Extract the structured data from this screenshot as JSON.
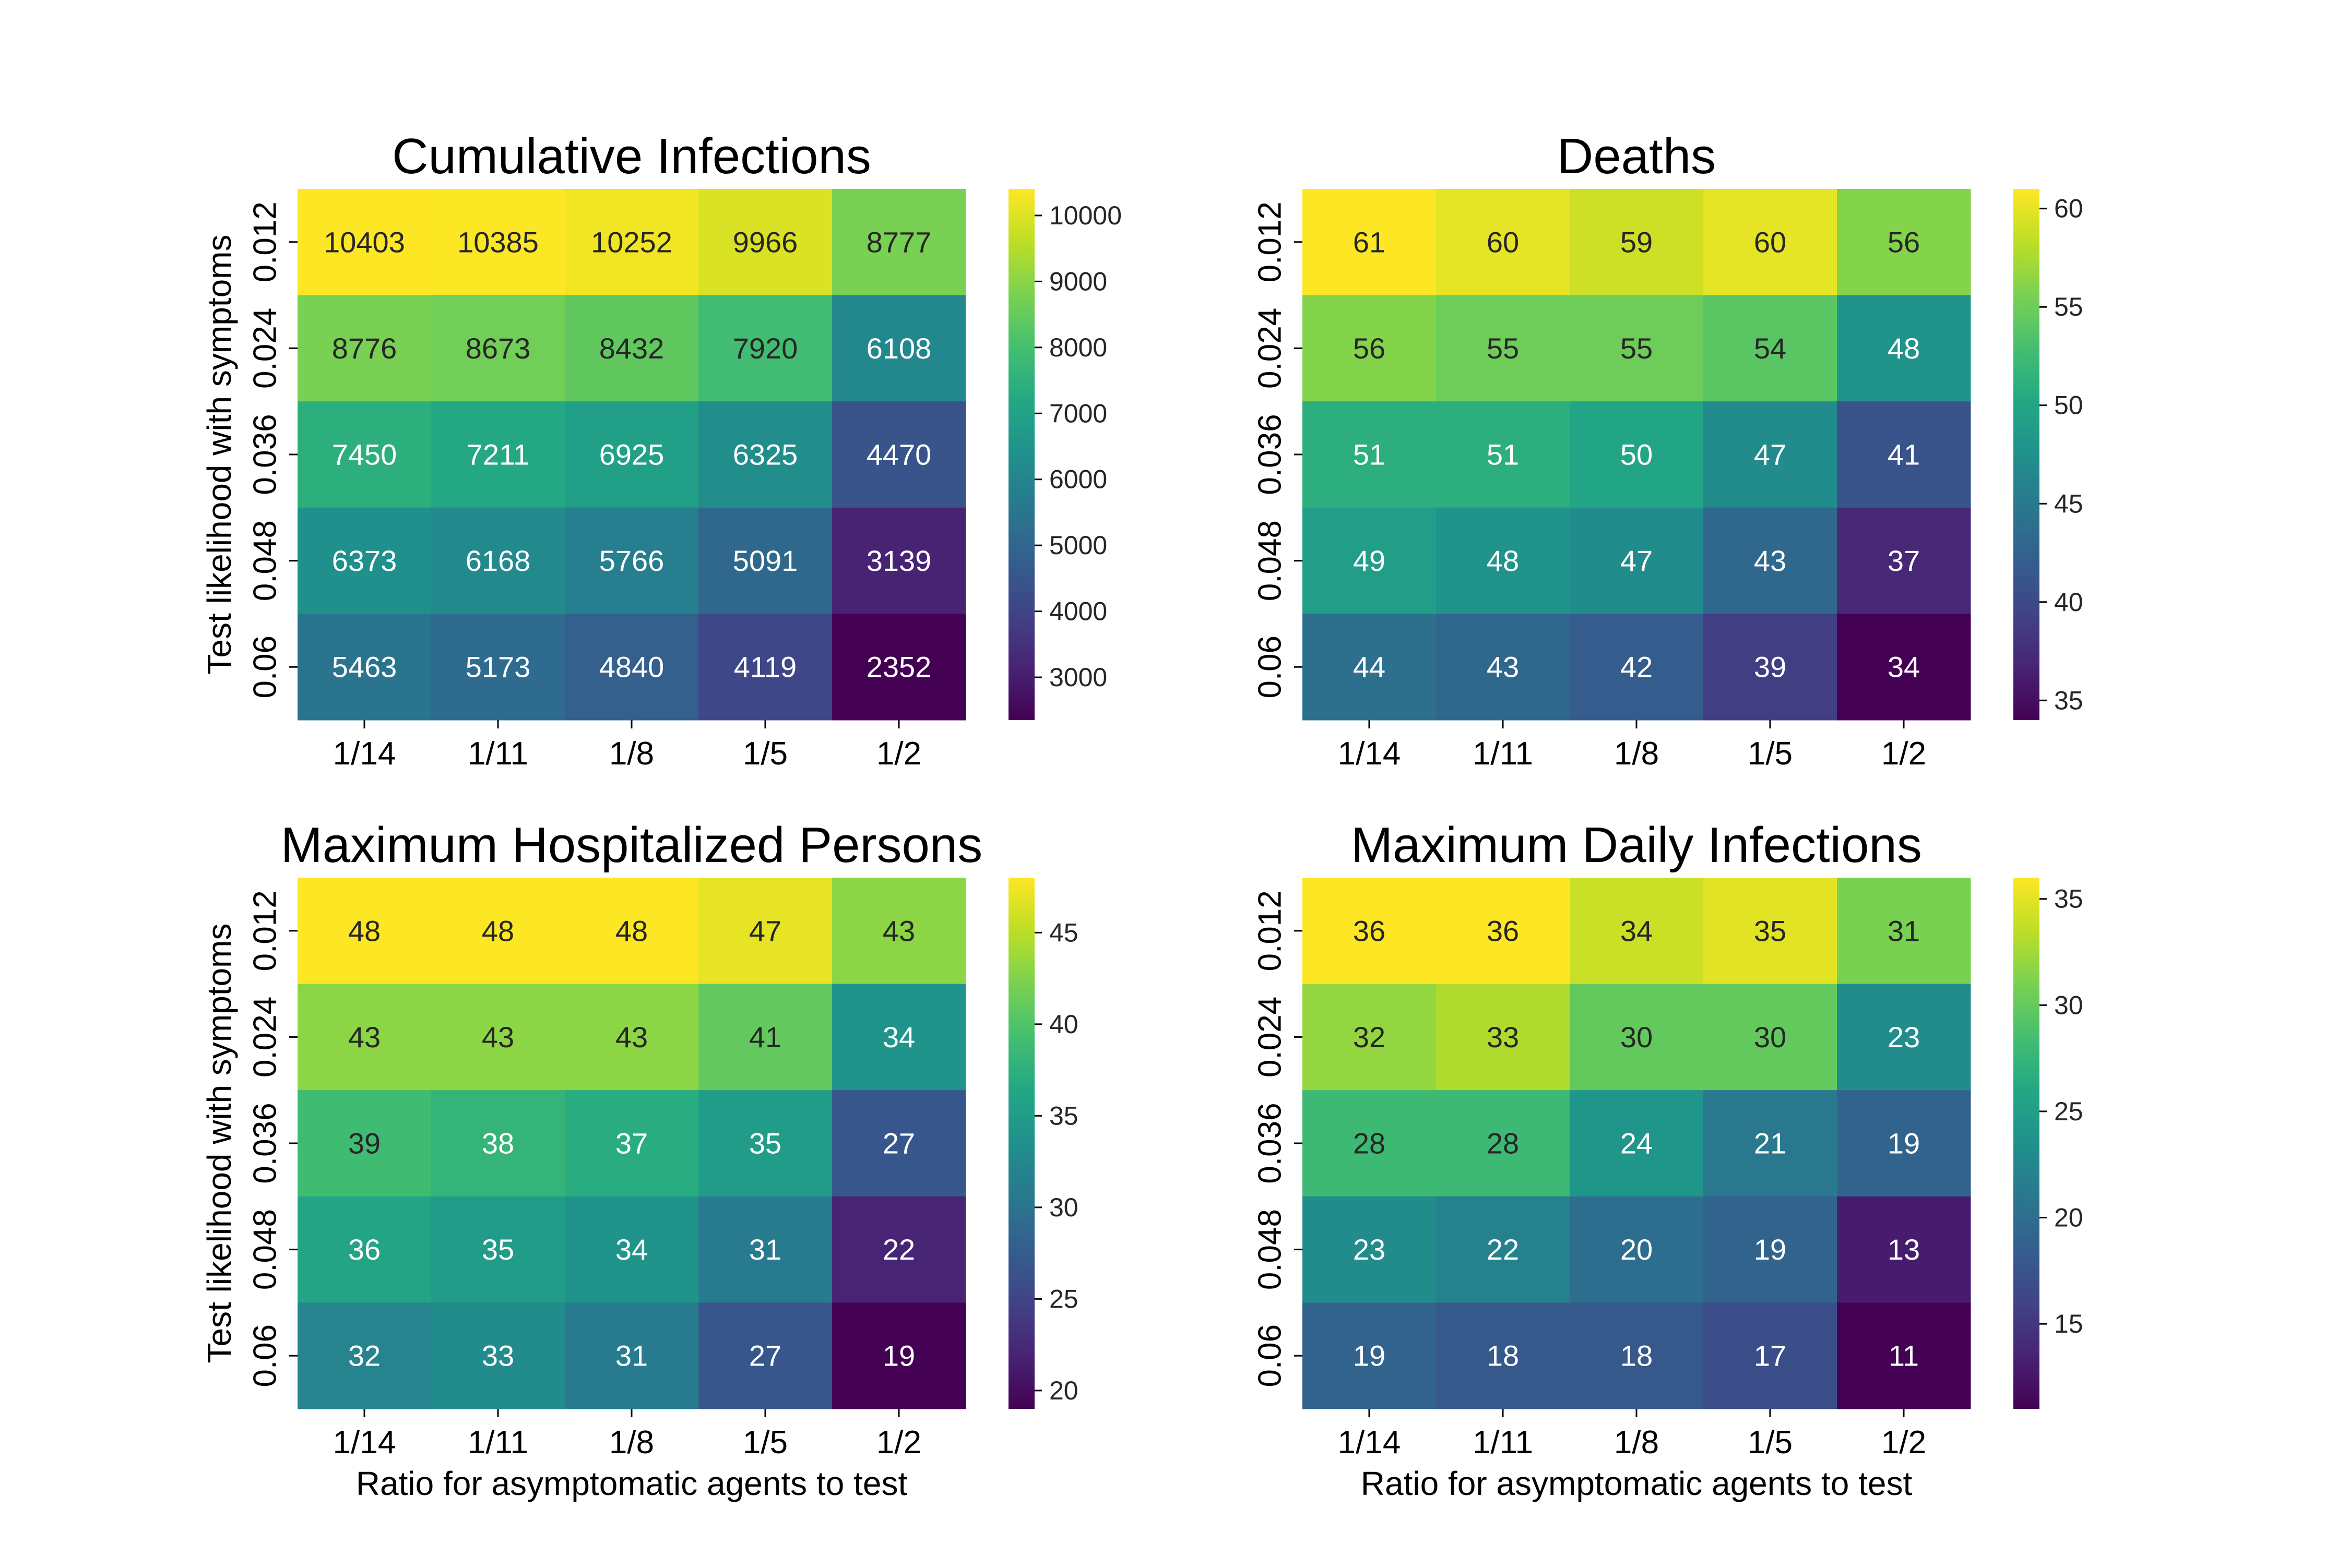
{
  "chart_data": [
    {
      "type": "heatmap",
      "title": "Cumulative Infections",
      "xlabel": "",
      "ylabel": "Test likelihood with symptoms",
      "x_categories": [
        "1/14",
        "1/11",
        "1/8",
        "1/5",
        "1/2"
      ],
      "y_categories": [
        "0.012",
        "0.024",
        "0.036",
        "0.048",
        "0.06"
      ],
      "values": [
        [
          10403,
          10385,
          10252,
          9966,
          8777
        ],
        [
          8776,
          8673,
          8432,
          7920,
          6108
        ],
        [
          7450,
          7211,
          6925,
          6325,
          4470
        ],
        [
          6373,
          6168,
          5766,
          5091,
          3139
        ],
        [
          5463,
          5173,
          4840,
          4119,
          2352
        ]
      ],
      "colorbar": {
        "min": 2352,
        "max": 10403,
        "ticks": [
          3000,
          4000,
          5000,
          6000,
          7000,
          8000,
          9000,
          10000
        ],
        "colormap": "viridis"
      }
    },
    {
      "type": "heatmap",
      "title": "Deaths",
      "xlabel": "",
      "ylabel": "",
      "x_categories": [
        "1/14",
        "1/11",
        "1/8",
        "1/5",
        "1/2"
      ],
      "y_categories": [
        "0.012",
        "0.024",
        "0.036",
        "0.048",
        "0.06"
      ],
      "values": [
        [
          61,
          60,
          59,
          60,
          56
        ],
        [
          56,
          55,
          55,
          54,
          48
        ],
        [
          51,
          51,
          50,
          47,
          41
        ],
        [
          49,
          48,
          47,
          43,
          37
        ],
        [
          44,
          43,
          42,
          39,
          34
        ]
      ],
      "colorbar": {
        "min": 34,
        "max": 61,
        "ticks": [
          35,
          40,
          45,
          50,
          55,
          60
        ],
        "colormap": "viridis"
      }
    },
    {
      "type": "heatmap",
      "title": "Maximum Hospitalized Persons",
      "xlabel": "Ratio for asymptomatic agents to test",
      "ylabel": "Test likelihood with symptoms",
      "x_categories": [
        "1/14",
        "1/11",
        "1/8",
        "1/5",
        "1/2"
      ],
      "y_categories": [
        "0.012",
        "0.024",
        "0.036",
        "0.048",
        "0.06"
      ],
      "values": [
        [
          48,
          48,
          48,
          47,
          43
        ],
        [
          43,
          43,
          43,
          41,
          34
        ],
        [
          39,
          38,
          37,
          35,
          27
        ],
        [
          36,
          35,
          34,
          31,
          22
        ],
        [
          32,
          33,
          31,
          27,
          19
        ]
      ],
      "colorbar": {
        "min": 19,
        "max": 48,
        "ticks": [
          20,
          25,
          30,
          35,
          40,
          45
        ],
        "colormap": "viridis"
      }
    },
    {
      "type": "heatmap",
      "title": "Maximum Daily Infections",
      "xlabel": "Ratio for asymptomatic agents to test",
      "ylabel": "",
      "x_categories": [
        "1/14",
        "1/11",
        "1/8",
        "1/5",
        "1/2"
      ],
      "y_categories": [
        "0.012",
        "0.024",
        "0.036",
        "0.048",
        "0.06"
      ],
      "values": [
        [
          36,
          36,
          34,
          35,
          31
        ],
        [
          32,
          33,
          30,
          30,
          23
        ],
        [
          28,
          28,
          24,
          21,
          19
        ],
        [
          23,
          22,
          20,
          19,
          13
        ],
        [
          19,
          18,
          18,
          17,
          11
        ]
      ],
      "colorbar": {
        "min": 11,
        "max": 36,
        "ticks": [
          15,
          20,
          25,
          30,
          35
        ],
        "colormap": "viridis"
      }
    }
  ]
}
